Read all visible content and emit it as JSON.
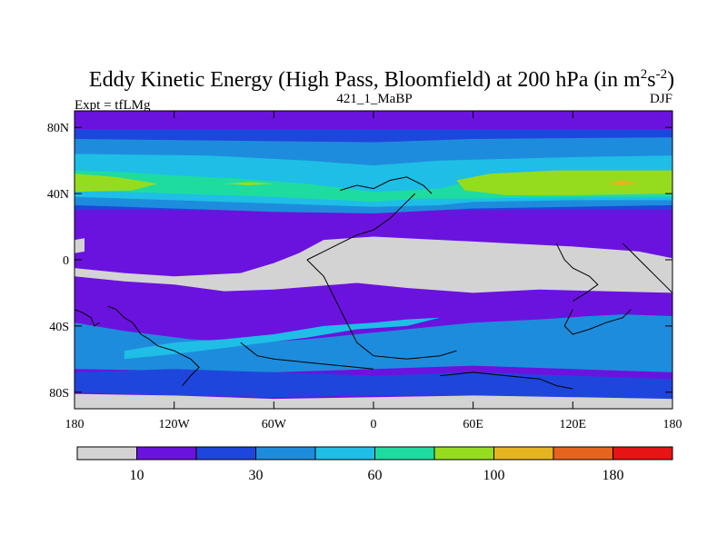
{
  "chart_data": {
    "type": "heatmap",
    "title_main": "Eddy Kinetic Energy (High Pass, Bloomfield) at 200 hPa (in m",
    "title_sup1": "2",
    "title_mid": "s",
    "title_sup2": "-2",
    "title_end": ")",
    "subtitle_center": "421_1_MaBP",
    "subtitle_left": "Expt = tfLMg",
    "subtitle_right": "DJF",
    "x_ticks": [
      {
        "value": -180,
        "label": "180"
      },
      {
        "value": -120,
        "label": "120W"
      },
      {
        "value": -60,
        "label": "60W"
      },
      {
        "value": 0,
        "label": "0"
      },
      {
        "value": 60,
        "label": "60E"
      },
      {
        "value": 120,
        "label": "120E"
      },
      {
        "value": 180,
        "label": "180"
      }
    ],
    "y_ticks": [
      {
        "value": 80,
        "label": "80N"
      },
      {
        "value": 40,
        "label": "40N"
      },
      {
        "value": 0,
        "label": "0"
      },
      {
        "value": -40,
        "label": "40S"
      },
      {
        "value": -80,
        "label": "80S"
      }
    ],
    "xlim": [
      -180,
      180
    ],
    "ylim": [
      -90,
      90
    ],
    "colorbar": {
      "colors": [
        "#d3d3d3",
        "#6a13de",
        "#1e46dc",
        "#1e8cdc",
        "#1ebee6",
        "#1edca0",
        "#96dc1e",
        "#e6b41e",
        "#e6641e",
        "#e61414"
      ],
      "labels": [
        {
          "after_box": 1,
          "text": "10"
        },
        {
          "after_box": 3,
          "text": "30"
        },
        {
          "after_box": 5,
          "text": "60"
        },
        {
          "after_box": 7,
          "text": "100"
        },
        {
          "after_box": 9,
          "text": "180"
        }
      ]
    },
    "bands": [
      {
        "level": 1,
        "poly": [
          [
            -180,
            90
          ],
          [
            180,
            90
          ],
          [
            180,
            -90
          ],
          [
            -180,
            -90
          ]
        ]
      },
      {
        "level": 2,
        "poly": [
          [
            -180,
            79
          ],
          [
            180,
            79
          ],
          [
            180,
            30
          ],
          [
            -180,
            30
          ]
        ]
      },
      {
        "level": 3,
        "poly": [
          [
            -180,
            73
          ],
          [
            -90,
            72
          ],
          [
            0,
            71
          ],
          [
            60,
            73
          ],
          [
            180,
            74
          ],
          [
            180,
            33
          ],
          [
            120,
            32
          ],
          [
            60,
            31
          ],
          [
            0,
            28
          ],
          [
            -60,
            29
          ],
          [
            -120,
            31
          ],
          [
            -180,
            33
          ]
        ]
      },
      {
        "level": 4,
        "poly": [
          [
            -180,
            64
          ],
          [
            -100,
            63
          ],
          [
            -40,
            60
          ],
          [
            0,
            57
          ],
          [
            40,
            60
          ],
          [
            120,
            62
          ],
          [
            180,
            63
          ],
          [
            180,
            36
          ],
          [
            120,
            36
          ],
          [
            60,
            35
          ],
          [
            40,
            33
          ],
          [
            0,
            32
          ],
          [
            -60,
            34
          ],
          [
            -120,
            36
          ],
          [
            -180,
            38
          ]
        ]
      },
      {
        "level": 5,
        "poly": [
          [
            -180,
            54
          ],
          [
            -150,
            53
          ],
          [
            -120,
            51
          ],
          [
            -80,
            49
          ],
          [
            -40,
            46
          ],
          [
            0,
            41
          ],
          [
            40,
            43
          ],
          [
            60,
            48
          ],
          [
            120,
            53
          ],
          [
            180,
            54
          ],
          [
            180,
            38
          ],
          [
            120,
            38
          ],
          [
            60,
            37
          ],
          [
            30,
            37
          ],
          [
            0,
            35
          ],
          [
            -60,
            38
          ],
          [
            -120,
            40
          ],
          [
            -180,
            42
          ]
        ]
      },
      {
        "level": 6,
        "poly": [
          [
            -180,
            52
          ],
          [
            -155,
            50
          ],
          [
            -130,
            46
          ],
          [
            -145,
            42
          ],
          [
            -180,
            41
          ]
        ]
      },
      {
        "level": 6,
        "poly": [
          [
            50,
            48
          ],
          [
            70,
            52
          ],
          [
            110,
            54
          ],
          [
            180,
            54
          ],
          [
            180,
            40
          ],
          [
            120,
            39
          ],
          [
            80,
            39
          ],
          [
            55,
            42
          ]
        ]
      },
      {
        "level": 6,
        "poly": [
          [
            -90,
            46
          ],
          [
            -75,
            47
          ],
          [
            -60,
            46
          ],
          [
            -75,
            45
          ]
        ]
      },
      {
        "level": 7,
        "poly": [
          [
            140,
            46
          ],
          [
            150,
            48
          ],
          [
            160,
            46
          ],
          [
            150,
            45
          ]
        ]
      },
      {
        "level": 0,
        "poly": [
          [
            -180,
            12
          ],
          [
            -174,
            13
          ],
          [
            -174,
            5
          ],
          [
            -180,
            4
          ]
        ]
      },
      {
        "level": 0,
        "poly": [
          [
            -180,
            -5
          ],
          [
            -150,
            -8
          ],
          [
            -120,
            -10
          ],
          [
            -80,
            -8
          ],
          [
            -60,
            -2
          ],
          [
            -45,
            4
          ],
          [
            -30,
            12
          ],
          [
            0,
            14
          ],
          [
            40,
            12
          ],
          [
            80,
            10
          ],
          [
            120,
            8
          ],
          [
            160,
            5
          ],
          [
            180,
            1
          ],
          [
            180,
            -20
          ],
          [
            140,
            -19
          ],
          [
            100,
            -18
          ],
          [
            60,
            -20
          ],
          [
            20,
            -17
          ],
          [
            -10,
            -14
          ],
          [
            -60,
            -18
          ],
          [
            -90,
            -19
          ],
          [
            -120,
            -15
          ],
          [
            -150,
            -13
          ],
          [
            -180,
            -10
          ]
        ]
      },
      {
        "level": 3,
        "poly": [
          [
            -180,
            -38
          ],
          [
            -150,
            -43
          ],
          [
            -110,
            -48
          ],
          [
            -70,
            -50
          ],
          [
            -40,
            -48
          ],
          [
            -10,
            -45
          ],
          [
            20,
            -42
          ],
          [
            60,
            -38
          ],
          [
            100,
            -36
          ],
          [
            130,
            -34
          ],
          [
            150,
            -33
          ],
          [
            180,
            -34
          ],
          [
            180,
            -68
          ],
          [
            120,
            -66
          ],
          [
            60,
            -64
          ],
          [
            0,
            -66
          ],
          [
            -60,
            -68
          ],
          [
            -120,
            -67
          ],
          [
            -180,
            -66
          ]
        ]
      },
      {
        "level": 4,
        "poly": [
          [
            -150,
            -55
          ],
          [
            -120,
            -50
          ],
          [
            -90,
            -48
          ],
          [
            -60,
            -45
          ],
          [
            -30,
            -40
          ],
          [
            0,
            -38
          ],
          [
            20,
            -36
          ],
          [
            40,
            -35
          ],
          [
            20,
            -40
          ],
          [
            -10,
            -42
          ],
          [
            -40,
            -47
          ],
          [
            -80,
            -52
          ],
          [
            -120,
            -57
          ],
          [
            -150,
            -60
          ]
        ]
      },
      {
        "level": 2,
        "poly": [
          [
            -180,
            -68
          ],
          [
            -120,
            -66
          ],
          [
            -60,
            -68
          ],
          [
            0,
            -70
          ],
          [
            60,
            -68
          ],
          [
            120,
            -70
          ],
          [
            180,
            -72
          ],
          [
            180,
            -84
          ],
          [
            120,
            -83
          ],
          [
            60,
            -82
          ],
          [
            0,
            -82
          ],
          [
            -60,
            -83
          ],
          [
            -120,
            -82
          ],
          [
            -180,
            -80
          ]
        ]
      },
      {
        "level": 0,
        "poly": [
          [
            -180,
            -81
          ],
          [
            -120,
            -82
          ],
          [
            -60,
            -84
          ],
          [
            0,
            -83
          ],
          [
            60,
            -82
          ],
          [
            120,
            -83
          ],
          [
            180,
            -84
          ],
          [
            180,
            -90
          ],
          [
            -180,
            -90
          ]
        ]
      }
    ],
    "coastlines": [
      [
        [
          -180,
          -30
        ],
        [
          -175,
          -32
        ],
        [
          -170,
          -35
        ],
        [
          -168,
          -40
        ],
        [
          -165,
          -38
        ]
      ],
      [
        [
          -160,
          -28
        ],
        [
          -155,
          -30
        ],
        [
          -150,
          -35
        ],
        [
          -145,
          -38
        ],
        [
          -140,
          -45
        ],
        [
          -135,
          -48
        ],
        [
          -130,
          -52
        ],
        [
          -120,
          -55
        ],
        [
          -110,
          -60
        ],
        [
          -105,
          -65
        ],
        [
          -110,
          -70
        ],
        [
          -115,
          -76
        ]
      ],
      [
        [
          -20,
          42
        ],
        [
          -10,
          45
        ],
        [
          0,
          43
        ],
        [
          10,
          48
        ],
        [
          20,
          50
        ],
        [
          30,
          45
        ],
        [
          35,
          40
        ]
      ],
      [
        [
          -40,
          0
        ],
        [
          -35,
          -5
        ],
        [
          -30,
          -10
        ],
        [
          -25,
          -20
        ],
        [
          -20,
          -30
        ],
        [
          -15,
          -40
        ],
        [
          -10,
          -50
        ],
        [
          0,
          -58
        ],
        [
          20,
          -60
        ],
        [
          40,
          -58
        ],
        [
          50,
          -55
        ]
      ],
      [
        [
          -40,
          0
        ],
        [
          -30,
          5
        ],
        [
          -20,
          10
        ],
        [
          -10,
          15
        ],
        [
          0,
          18
        ],
        [
          10,
          25
        ],
        [
          15,
          30
        ],
        [
          20,
          35
        ],
        [
          25,
          40
        ]
      ],
      [
        [
          40,
          -70
        ],
        [
          60,
          -68
        ],
        [
          80,
          -70
        ],
        [
          100,
          -72
        ],
        [
          110,
          -76
        ],
        [
          120,
          -78
        ]
      ],
      [
        [
          120,
          -30
        ],
        [
          115,
          -40
        ],
        [
          120,
          -45
        ],
        [
          130,
          -42
        ],
        [
          140,
          -38
        ],
        [
          150,
          -35
        ],
        [
          155,
          -30
        ]
      ],
      [
        [
          110,
          10
        ],
        [
          115,
          0
        ],
        [
          120,
          -5
        ],
        [
          130,
          -10
        ],
        [
          135,
          -15
        ],
        [
          128,
          -20
        ],
        [
          120,
          -25
        ]
      ],
      [
        [
          150,
          10
        ],
        [
          155,
          5
        ],
        [
          160,
          0
        ],
        [
          165,
          -5
        ],
        [
          170,
          -10
        ],
        [
          175,
          -15
        ],
        [
          180,
          -20
        ]
      ],
      [
        [
          -80,
          -50
        ],
        [
          -70,
          -58
        ],
        [
          -60,
          -60
        ],
        [
          -40,
          -62
        ],
        [
          -20,
          -64
        ],
        [
          0,
          -66
        ]
      ]
    ]
  }
}
